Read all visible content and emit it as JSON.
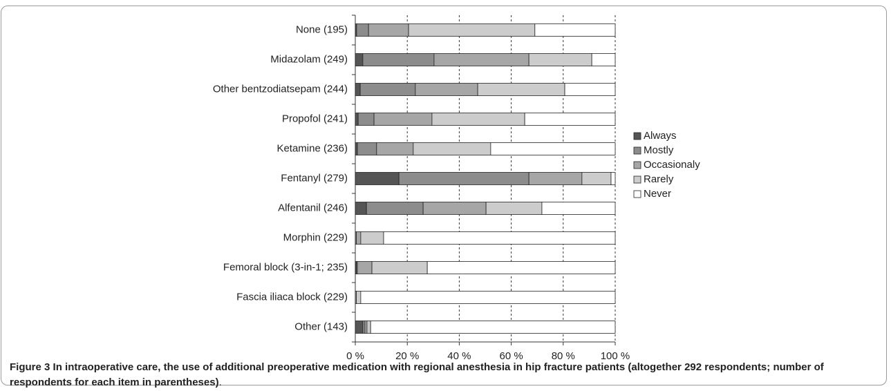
{
  "chart_data": {
    "type": "stacked-barh",
    "categories": [
      "None (195)",
      "Midazolam (249)",
      "Other bentzodiatsepam (244)",
      "Propofol (241)",
      "Ketamine (236)",
      "Fentanyl (279)",
      "Alfentanil (246)",
      "Morphin (229)",
      "Femoral block (3-in-1; 235)",
      "Fascia iliaca block (229)",
      "Other (143)"
    ],
    "series": [
      {
        "name": "Always",
        "color": "#555555",
        "values": [
          0.5,
          2.9,
          1.9,
          1.1,
          0.8,
          16.8,
          4.3,
          0,
          0.4,
          0,
          2.9
        ]
      },
      {
        "name": "Mostly",
        "color": "#8c8c8c",
        "values": [
          4.6,
          27.4,
          21.2,
          6.1,
          7.4,
          50.0,
          21.8,
          0.4,
          0.4,
          0,
          0.8
        ]
      },
      {
        "name": "Occasionaly",
        "color": "#a6a6a6",
        "values": [
          15.4,
          36.5,
          24.0,
          22.3,
          14.1,
          20.4,
          24.2,
          1.7,
          5.6,
          0.4,
          0.8
        ]
      },
      {
        "name": "Rarely",
        "color": "#cccccc",
        "values": [
          48.6,
          24.2,
          33.5,
          35.7,
          29.8,
          11.2,
          21.5,
          8.8,
          21.3,
          1.7,
          1.4
        ]
      },
      {
        "name": "Never",
        "color": "#ffffff",
        "values": [
          30.9,
          9.0,
          19.4,
          34.8,
          47.9,
          1.6,
          28.2,
          89.1,
          72.3,
          97.9,
          94.1
        ]
      }
    ],
    "xlim": [
      0,
      100
    ],
    "xticks": [
      {
        "value": 0,
        "label": "0 %"
      },
      {
        "value": 20,
        "label": "20 %"
      },
      {
        "value": 40,
        "label": "40 %"
      },
      {
        "value": 60,
        "label": "60 %"
      },
      {
        "value": 80,
        "label": "80 %"
      },
      {
        "value": 100,
        "label": "100 %"
      }
    ],
    "grid": true,
    "legend": "right"
  },
  "caption": {
    "label": "Figure 3",
    "text": "In intraoperative care, the use of additional preoperative medication with regional anesthesia in hip fracture patients (altogether 292 respondents; number of respondents for each item in parentheses)",
    "end": "."
  }
}
